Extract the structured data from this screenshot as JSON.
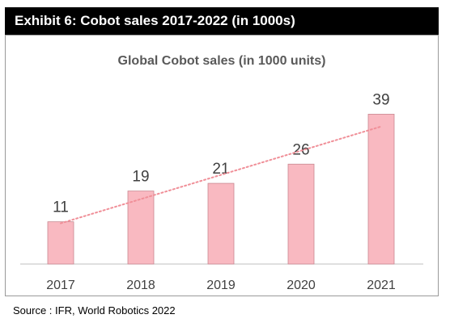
{
  "header": {
    "title": "Exhibit 6: Cobot sales 2017-2022  (in 1000s)"
  },
  "source": {
    "text": "Source : IFR, World Robotics 2022"
  },
  "chart_data": {
    "type": "bar",
    "title": "Global Cobot  sales (in 1000 units)",
    "categories": [
      "2017",
      "2018",
      "2019",
      "2020",
      "2021"
    ],
    "values": [
      11,
      19,
      21,
      26,
      39
    ],
    "data_labels": [
      "11",
      "19",
      "21",
      "26",
      "39"
    ],
    "xlabel": "",
    "ylabel": "",
    "ylim": [
      0,
      43.5
    ],
    "grid": false,
    "trendline": {
      "type": "linear",
      "style": "dotted"
    },
    "colors": {
      "bar_fill": "#f9b9c1",
      "bar_stroke": "#c98891",
      "trendline": "#f08f98",
      "axis": "#bfbfbf",
      "text": "#404040"
    }
  }
}
